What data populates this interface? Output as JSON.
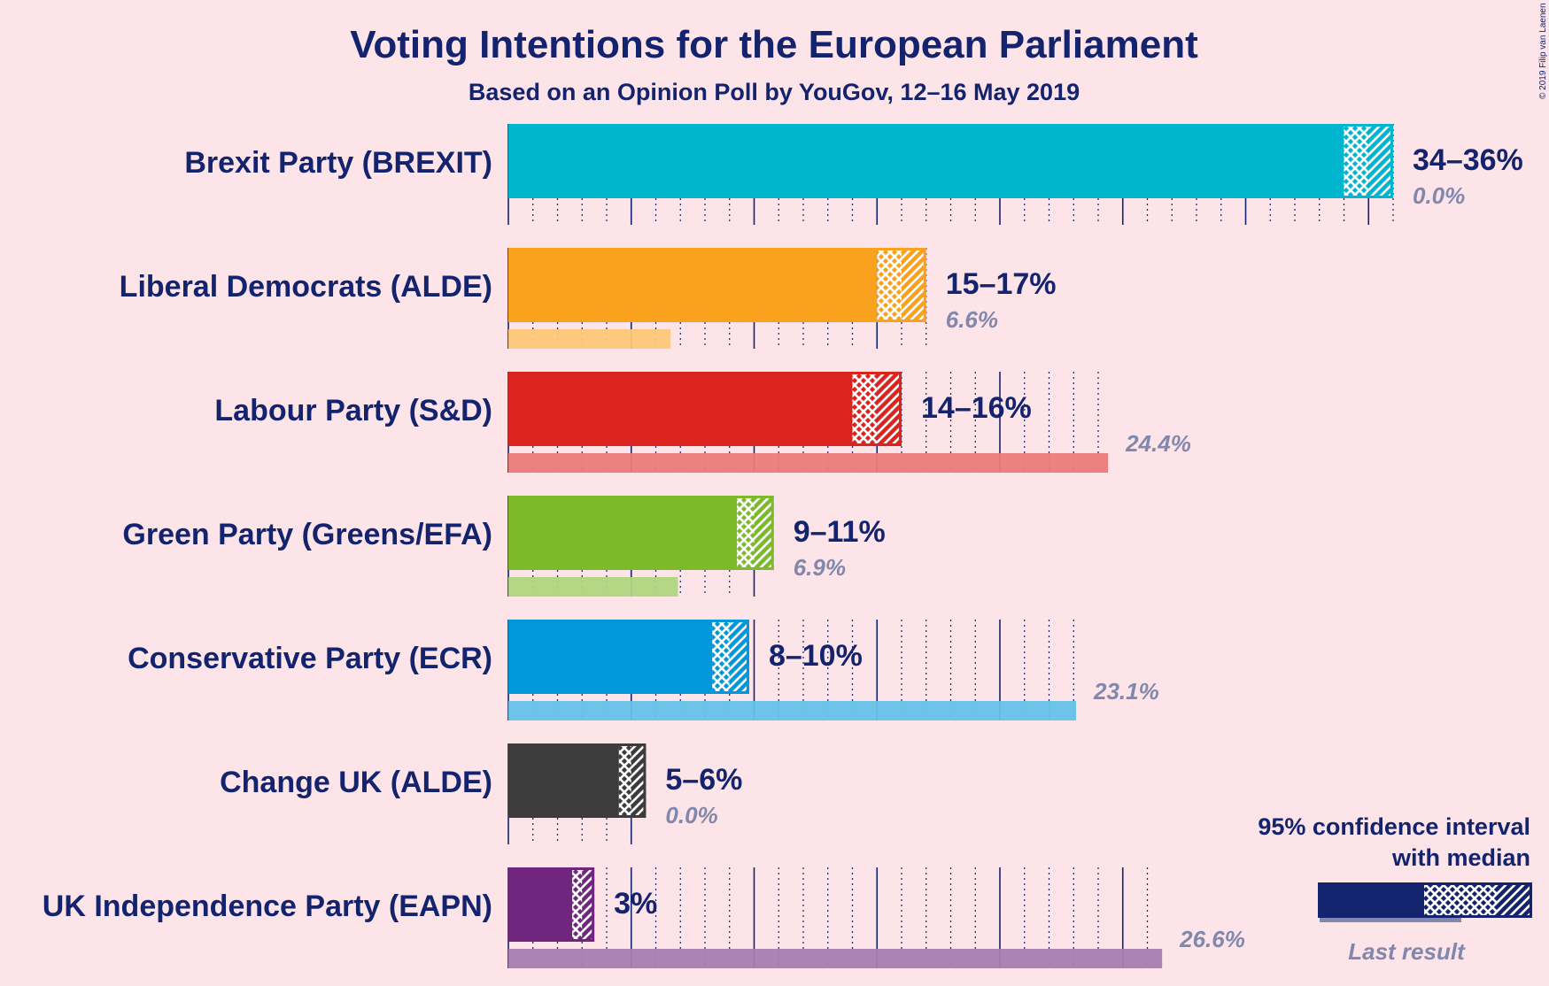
{
  "chart_data": {
    "type": "bar",
    "orientation": "horizontal",
    "title": "Voting Intentions for the European Parliament",
    "subtitle": "Based on an Opinion Poll by YouGov, 12–16 May 2019",
    "copyright": "© 2019 Filip van Laenen",
    "x_range": [
      0,
      36
    ],
    "grid": true,
    "legend": {
      "title_line1": "95% confidence interval",
      "title_line2": "with median",
      "last_result_label": "Last result",
      "placement": "bottom-right"
    },
    "series": [
      {
        "party": "Brexit Party (BREXIT)",
        "color": "#00b6cf",
        "ci_low": 34,
        "median": 35,
        "ci_high": 36,
        "range_label": "34–36%",
        "last_result": 0.0,
        "last_label": "0.0%"
      },
      {
        "party": "Liberal Democrats (ALDE)",
        "color": "#faa11e",
        "ci_low": 15,
        "median": 16,
        "ci_high": 17,
        "range_label": "15–17%",
        "last_result": 6.6,
        "last_label": "6.6%"
      },
      {
        "party": "Labour Party (S&D)",
        "color": "#dc241f",
        "ci_low": 14,
        "median": 15,
        "ci_high": 16,
        "range_label": "14–16%",
        "last_result": 24.4,
        "last_label": "24.4%"
      },
      {
        "party": "Green Party (Greens/EFA)",
        "color": "#7cba2c",
        "ci_low": 9.3,
        "median": 10,
        "ci_high": 10.8,
        "range_label": "9–11%",
        "last_result": 6.9,
        "last_label": "6.9%"
      },
      {
        "party": "Conservative Party (ECR)",
        "color": "#0098db",
        "ci_low": 8.3,
        "median": 9,
        "ci_high": 9.8,
        "range_label": "8–10%",
        "last_result": 23.1,
        "last_label": "23.1%"
      },
      {
        "party": "Change UK (ALDE)",
        "color": "#3c3c3c",
        "ci_low": 4.5,
        "median": 5,
        "ci_high": 5.6,
        "range_label": "5–6%",
        "last_result": 0.0,
        "last_label": "0.0%"
      },
      {
        "party": "UK Independence Party (EAPN)",
        "color": "#70267f",
        "ci_low": 2.6,
        "median": 3,
        "ci_high": 3.5,
        "range_label": "3%",
        "last_result": 26.6,
        "last_label": "26.6%"
      }
    ]
  }
}
